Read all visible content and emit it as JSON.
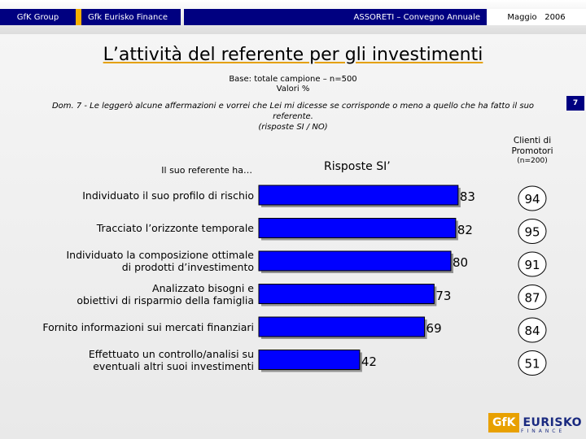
{
  "header": {
    "brand": "GfK Group",
    "org": "Gfk Eurisko Finance",
    "event": "ASSORETI – Convegno Annuale",
    "date": "Maggio   2006"
  },
  "page_number": "7",
  "question": {
    "line1": "Dom. 7 - Le leggerò alcune affermazioni e vorrei che Lei mi dicesse se corrisponde o meno a quello che ha fatto il suo referente.",
    "line2": "(risposte SI / NO)"
  },
  "chart_data": {
    "type": "bar",
    "title": "L’attività del referente per gli investimenti",
    "base_line": "Base: totale campione – n=500",
    "unit_line": "Valori %",
    "row_header": "Il suo referente ha…",
    "series_header": "Risposte SI’",
    "comparison_header": "Clienti di Promotori",
    "comparison_n": "(n=200)",
    "categories": [
      "Individuato il suo profilo di rischio",
      "Tracciato l’orizzonte temporale",
      "Individuato la composizione ottimale di prodotti d’investimento",
      "Analizzato bisogni e obiettivi di risparmio della famiglia",
      "Fornito informazioni sui mercati finanziari",
      "Effettuato un controllo/analisi su eventuali altri suoi investimenti"
    ],
    "category_lines": [
      [
        "Individuato il suo profilo di rischio"
      ],
      [
        "Tracciato l’orizzonte temporale"
      ],
      [
        "Individuato la composizione ottimale",
        "di prodotti d’investimento"
      ],
      [
        "Analizzato  bisogni e",
        "obiettivi di risparmio della famiglia"
      ],
      [
        "Fornito informazioni sui mercati finanziari"
      ],
      [
        "Effettuato un controllo/analisi su",
        "eventuali altri suoi investimenti"
      ]
    ],
    "series": [
      {
        "name": "Risposte SI’",
        "values": [
          83,
          82,
          80,
          73,
          69,
          42
        ]
      }
    ],
    "comparison_values": [
      94,
      95,
      91,
      87,
      84,
      51
    ],
    "xlim": [
      0,
      100
    ],
    "grid": false,
    "colors": {
      "bar": "#0000ff",
      "bar_border": "#000000",
      "circle_fill": "#ffffff"
    }
  },
  "logo": {
    "gfk": "GfK",
    "eurisko": "EURISKO",
    "finance": "FINANCE"
  }
}
